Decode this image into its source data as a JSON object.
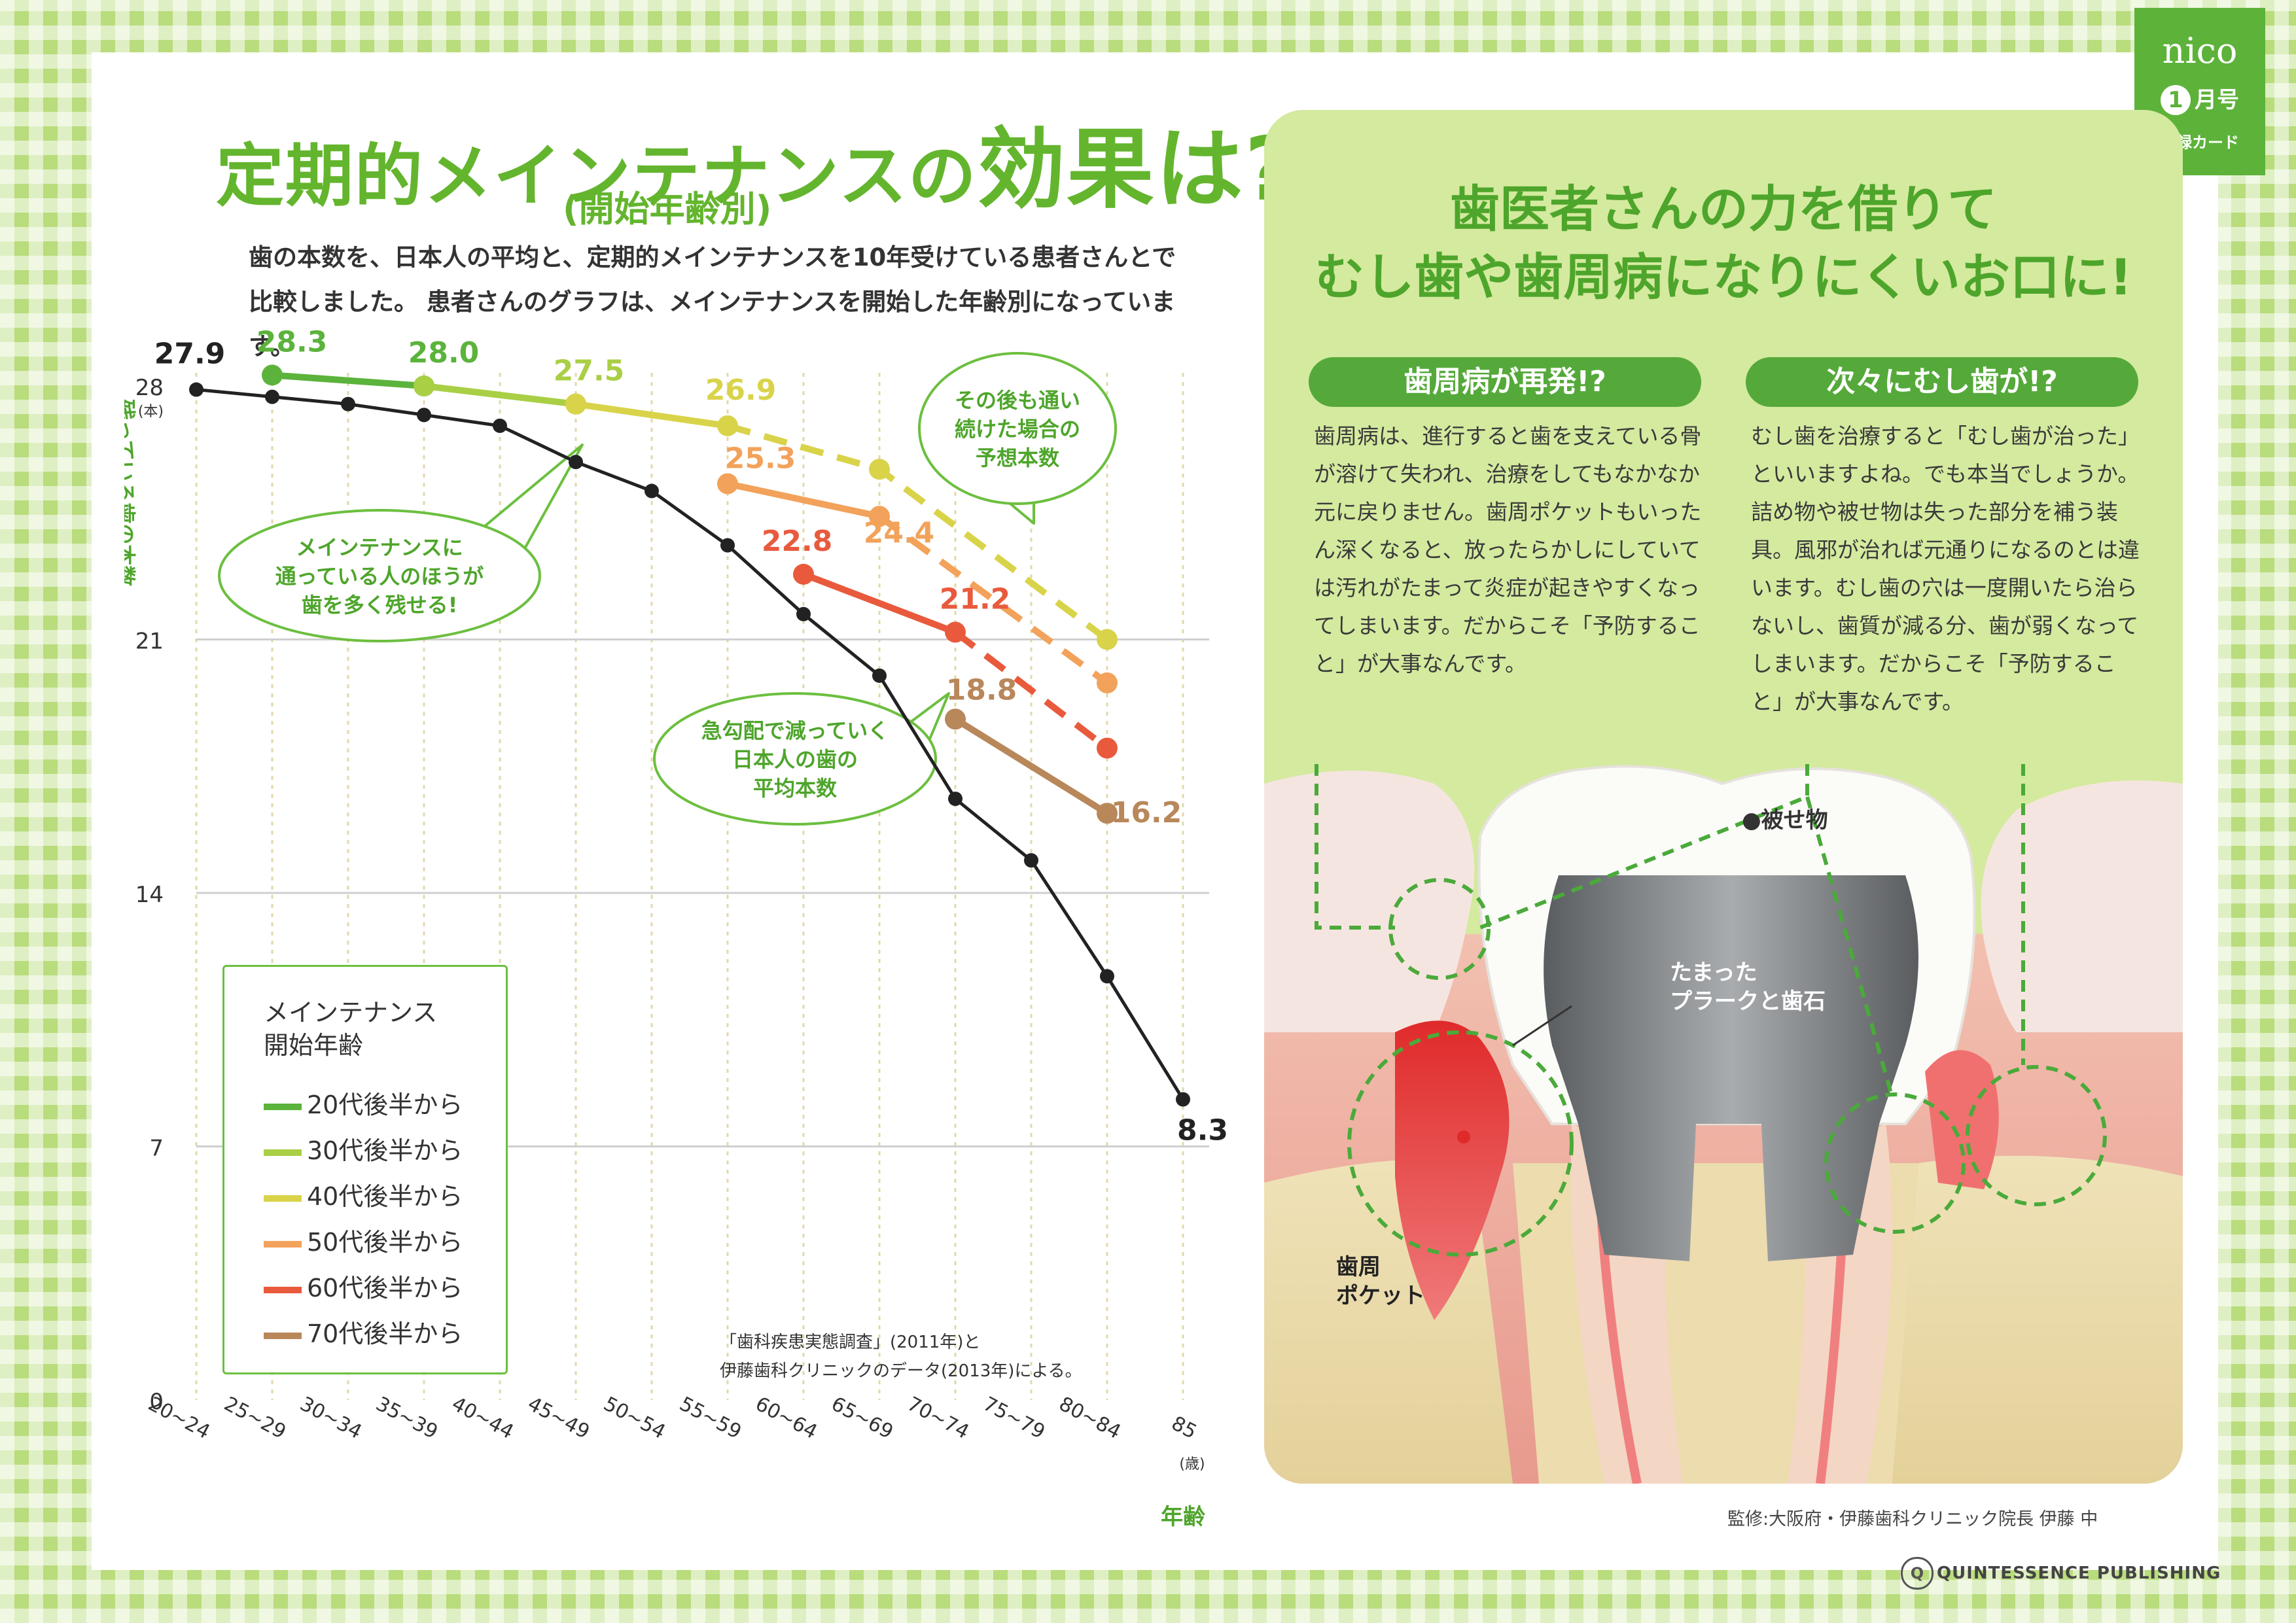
{
  "header": {
    "title_part1": "定期的メインテナンスの",
    "title_part2": "効果",
    "title_part3": "は?",
    "subtitle": "(開始年齢別)",
    "intro": "歯の本数を、日本人の平均と、定期的メインテナンスを10年受けている患者さんとで比較しました。 患者さんのグラフは、メインテナンスを開始した年齢別になっています。"
  },
  "badge": {
    "brand": "nico",
    "month_num": "1",
    "month_label": "月号",
    "card_label": "付録カード"
  },
  "chart_data": {
    "type": "line",
    "ylabel": "残っている歯の本数",
    "yunit": "(本)",
    "xlabel": "年齢",
    "xunit": "(歳)",
    "ylim": [
      0,
      28
    ],
    "yticks": [
      0,
      7,
      14,
      21,
      28
    ],
    "categories": [
      "20~24",
      "25~29",
      "30~34",
      "35~39",
      "40~44",
      "45~49",
      "50~54",
      "55~59",
      "60~64",
      "65~69",
      "70~74",
      "75~79",
      "80~84",
      "85"
    ],
    "grid": true,
    "series": [
      {
        "color": "#222222",
        "x": [
          0,
          1,
          2,
          3,
          4,
          5,
          6,
          7,
          8,
          9,
          10,
          11,
          12,
          13
        ],
        "values": [
          27.9,
          27.7,
          27.5,
          27.2,
          26.9,
          25.9,
          25.1,
          23.6,
          21.7,
          20.0,
          16.6,
          14.9,
          11.7,
          8.3
        ],
        "labels": [
          {
            "i": 0,
            "text": "27.9"
          },
          {
            "i": 13,
            "text": "8.3"
          }
        ]
      },
      {
        "name": "20代後半から",
        "color": "#5bb33c",
        "x": [
          1,
          3
        ],
        "values": [
          28.3,
          28.0
        ],
        "labels": [
          {
            "i": 0,
            "text": "28.3"
          },
          {
            "i": 1,
            "text": "28.0"
          }
        ]
      },
      {
        "name": "30代後半から",
        "color": "#a9cf45",
        "x": [
          3,
          5
        ],
        "values": [
          28.0,
          27.5
        ],
        "labels": [
          {
            "i": 1,
            "text": "27.5"
          }
        ]
      },
      {
        "name": "40代後半から",
        "color": "#d9d34a",
        "x": [
          5,
          7,
          9,
          12
        ],
        "values": [
          27.5,
          26.9,
          25.7,
          21.0
        ],
        "solid_until": 1,
        "labels": [
          {
            "i": 1,
            "text": "26.9"
          }
        ]
      },
      {
        "name": "50代後半から",
        "color": "#f2a25a",
        "x": [
          7,
          9,
          12
        ],
        "values": [
          25.3,
          24.4,
          19.8
        ],
        "solid_until": 1,
        "labels": [
          {
            "i": 0,
            "text": "25.3"
          },
          {
            "i": 1,
            "text": "24.4"
          }
        ]
      },
      {
        "name": "60代後半から",
        "color": "#e95a3d",
        "x": [
          8,
          10,
          12
        ],
        "values": [
          22.8,
          21.2,
          18.0
        ],
        "solid_until": 1,
        "labels": [
          {
            "i": 0,
            "text": "22.8"
          },
          {
            "i": 1,
            "text": "21.2"
          }
        ]
      },
      {
        "name": "70代後半から",
        "color": "#b8875a",
        "x": [
          10,
          12
        ],
        "values": [
          18.8,
          16.2
        ],
        "labels": [
          {
            "i": 0,
            "text": "18.8"
          },
          {
            "i": 1,
            "text": "16.2"
          }
        ]
      }
    ],
    "annotations": [
      "メインテナンスに\n通っている人のほうが\n歯を多く残せる!",
      "その後も通い\n続けた場合の\n予想本数",
      "急勾配で減っていく\n日本人の歯の\n平均本数"
    ]
  },
  "legend": {
    "title_line1": "メインテナンス",
    "title_line2": "開始年齢"
  },
  "source": {
    "line1": "「歯科疾患実態調査」(2011年)と",
    "line2": "伊藤歯科クリニックのデータ(2013年)による。"
  },
  "right": {
    "title_line1": "歯医者さんの力を借りて",
    "title_line2": "むし歯や歯周病になりにくいお口に!",
    "pill_left": "歯周病が再発!?",
    "pill_right": "次々にむし歯が!?",
    "text_left": "歯周病は、進行すると歯を支えている骨が溶けて失われ、治療をしてもなかなか元に戻りません。歯周ポケットもいったん深くなると、放ったらかしにしていては汚れがたまって炎症が起きやすくなってしまいます。だからこそ「予防すること」が大事なんです。",
    "text_right": "むし歯を治療すると「むし歯が治った」といいますよね。でも本当でしょうか。詰め物や被せ物は失った部分を補う装具。風邪が治れば元通りになるのとは違います。むし歯の穴は一度開いたら治らないし、歯質が減る分、歯が弱くなってしまいます。だからこそ「予防すること」が大事なんです。",
    "label_crown": "●被せ物",
    "label_plaque_1": "たまった",
    "label_plaque_2": "プラークと歯石",
    "label_pocket_1": "歯周",
    "label_pocket_2": "ポケット"
  },
  "footer": {
    "credit": "監修:大阪府・伊藤歯科クリニック院長 伊藤 中",
    "publisher": "QUINTESSENCE PUBLISHING"
  }
}
